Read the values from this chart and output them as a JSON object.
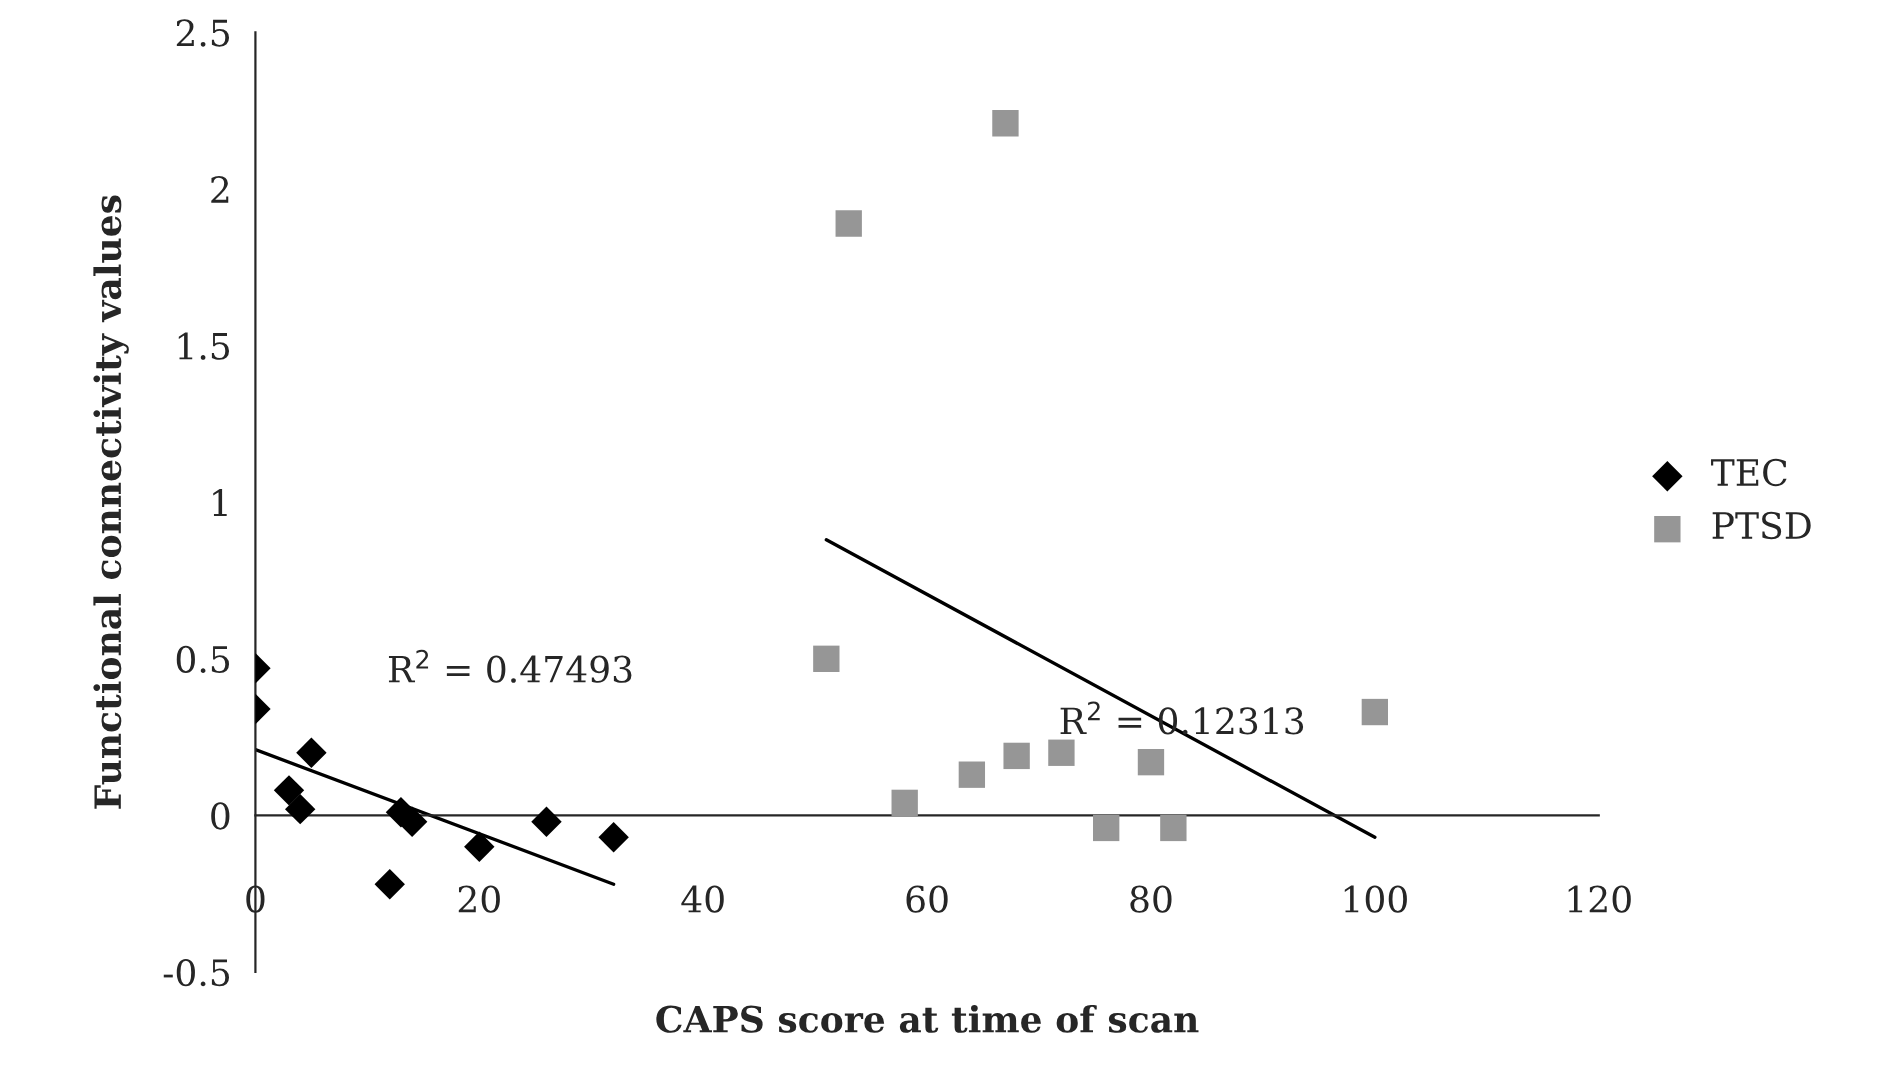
{
  "chart_data": {
    "type": "scatter",
    "xlabel": "CAPS score at time of scan",
    "ylabel": "Functional connectivity values",
    "xlim": [
      0,
      120
    ],
    "xticks": [
      0,
      20,
      40,
      60,
      80,
      100,
      120
    ],
    "ylim": [
      -0.5,
      2.5
    ],
    "yticks": [
      -0.5,
      0,
      0.5,
      1,
      1.5,
      2,
      2.5
    ],
    "grid": false,
    "legend": "right",
    "series": [
      {
        "name": "TEC",
        "marker": "diamond",
        "color": "#000000",
        "x": [
          0,
          0,
          3,
          4,
          5,
          12,
          13,
          14,
          20,
          26,
          32
        ],
        "values": [
          0.47,
          0.34,
          0.08,
          0.02,
          0.2,
          -0.22,
          0.01,
          -0.02,
          -0.1,
          -0.02,
          -0.07
        ]
      },
      {
        "name": "PTSD",
        "marker": "square",
        "color": "#969696",
        "x": [
          51,
          53,
          58,
          64,
          67,
          68,
          72,
          76,
          80,
          82,
          100
        ],
        "values": [
          0.5,
          1.89,
          0.04,
          0.13,
          2.21,
          0.19,
          0.2,
          -0.04,
          0.17,
          -0.04,
          0.33
        ]
      },
      {
        "type": "line",
        "color": "#000000",
        "x": [
          0,
          32
        ],
        "values": [
          0.21,
          -0.22
        ]
      },
      {
        "type": "line",
        "color": "#000000",
        "x": [
          51,
          100
        ],
        "values": [
          0.88,
          -0.07
        ]
      }
    ],
    "annotations": [
      "R$^{2}$ = 0.47493",
      "R$^{2}$ = 0.12313"
    ]
  }
}
